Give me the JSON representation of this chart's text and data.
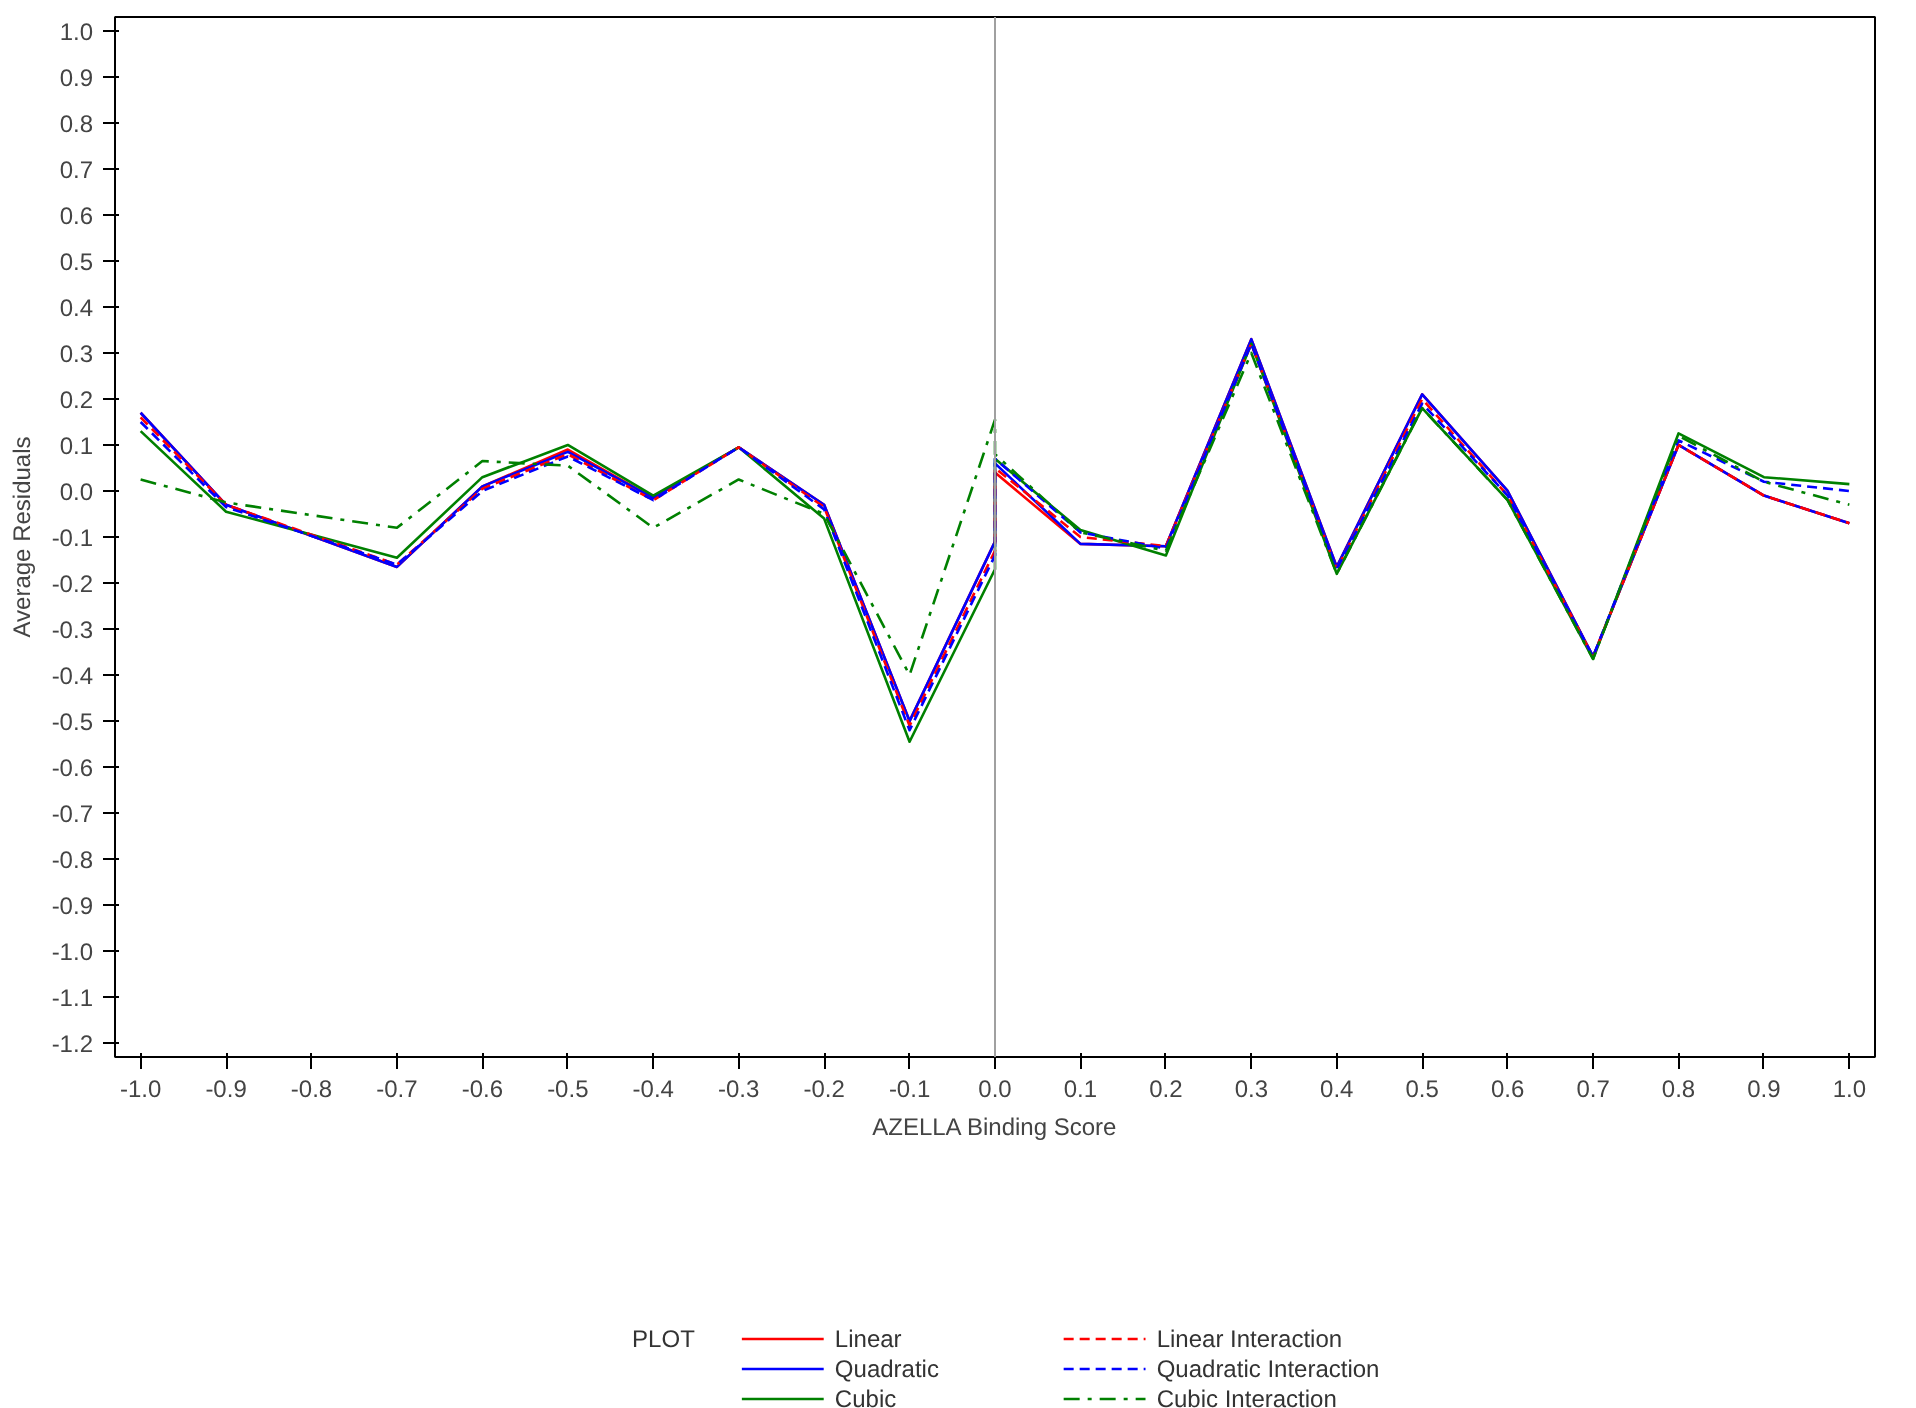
{
  "chart_data": {
    "type": "line",
    "xlabel": "AZELLA Binding Score",
    "ylabel": "Average Residuals",
    "legend_title": "PLOT",
    "legend": "bottom",
    "grid": false,
    "x": [
      -1.0,
      -0.9,
      -0.7,
      -0.6,
      -0.5,
      -0.4,
      -0.3,
      -0.2,
      -0.1,
      0.0,
      0.0,
      0.1,
      0.2,
      0.3,
      0.4,
      0.5,
      0.6,
      0.7,
      0.8,
      0.9,
      1.0
    ],
    "series": [
      {
        "name": "Linear",
        "color": "#ff0000",
        "line_style": "solid",
        "values": [
          0.17,
          -0.03,
          -0.165,
          0.01,
          0.09,
          -0.015,
          0.095,
          -0.03,
          -0.5,
          -0.11,
          0.04,
          -0.115,
          -0.12,
          0.33,
          -0.165,
          0.21,
          0.0,
          -0.36,
          0.1,
          -0.01,
          -0.07
        ]
      },
      {
        "name": "Quadratic",
        "color": "#0000ff",
        "line_style": "solid",
        "values": [
          0.17,
          -0.03,
          -0.165,
          0.01,
          0.085,
          -0.015,
          0.095,
          -0.03,
          -0.5,
          -0.11,
          0.06,
          -0.115,
          -0.12,
          0.33,
          -0.165,
          0.21,
          0.0,
          -0.36,
          0.1,
          -0.01,
          -0.07
        ]
      },
      {
        "name": "Cubic",
        "color": "#008000",
        "line_style": "solid",
        "values": [
          0.13,
          -0.045,
          -0.145,
          0.03,
          0.1,
          -0.01,
          0.095,
          -0.06,
          -0.545,
          -0.17,
          0.07,
          -0.085,
          -0.14,
          0.32,
          -0.18,
          0.18,
          -0.02,
          -0.365,
          0.125,
          0.03,
          0.015
        ]
      },
      {
        "name": "Linear Interaction",
        "color": "#ff0000",
        "line_style": "dashed",
        "values": [
          0.16,
          -0.03,
          -0.16,
          0.005,
          0.08,
          -0.02,
          0.095,
          -0.035,
          -0.51,
          -0.13,
          0.05,
          -0.1,
          -0.12,
          0.32,
          -0.17,
          0.2,
          -0.01,
          -0.36,
          0.1,
          -0.01,
          -0.07
        ]
      },
      {
        "name": "Quadratic Interaction",
        "color": "#0000ff",
        "line_style": "dashed",
        "values": [
          0.15,
          -0.035,
          -0.16,
          0.0,
          0.075,
          -0.02,
          0.095,
          -0.04,
          -0.52,
          -0.14,
          0.07,
          -0.09,
          -0.125,
          0.32,
          -0.17,
          0.19,
          -0.01,
          -0.36,
          0.11,
          0.02,
          0.0
        ]
      },
      {
        "name": "Cubic Interaction",
        "color": "#008000",
        "line_style": "dashdot",
        "values": [
          0.025,
          -0.025,
          -0.08,
          0.065,
          0.055,
          -0.08,
          0.025,
          -0.05,
          -0.4,
          0.155,
          0.08,
          -0.09,
          -0.13,
          0.3,
          -0.18,
          0.18,
          -0.02,
          -0.365,
          0.12,
          0.02,
          -0.03
        ]
      }
    ],
    "xlim": [
      -1.03,
      1.03
    ],
    "ylim": [
      -1.23,
      1.03
    ],
    "xticks": [
      {
        "value": -1.0,
        "label": "-1.0"
      },
      -0.9,
      -0.8,
      -0.7,
      -0.6,
      -0.5,
      -0.4,
      -0.3,
      -0.2,
      -0.1,
      {
        "value": 0.0,
        "label": "0.0"
      },
      0.1,
      0.2,
      0.3,
      0.4,
      0.5,
      0.6,
      0.7,
      0.8,
      0.9,
      {
        "value": 1.0,
        "label": "1.0"
      }
    ],
    "yticks": [
      {
        "value": -1.2,
        "label": "-1.2"
      },
      {
        "value": -1.1,
        "label": "-1.1"
      },
      {
        "value": -1.0,
        "label": "-1.0"
      },
      -0.9,
      -0.8,
      -0.7,
      -0.6,
      -0.5,
      -0.4,
      -0.3,
      -0.2,
      -0.1,
      {
        "value": 0.0,
        "label": "0.0"
      },
      0.1,
      0.2,
      0.3,
      0.4,
      0.5,
      0.6,
      0.7,
      0.8,
      0.9,
      {
        "value": 1.0,
        "label": "1.0"
      }
    ],
    "ref_lines": [
      {
        "axis": "x",
        "value": 0.0,
        "color": "#a0a0a0",
        "line_style": "solid"
      }
    ]
  }
}
